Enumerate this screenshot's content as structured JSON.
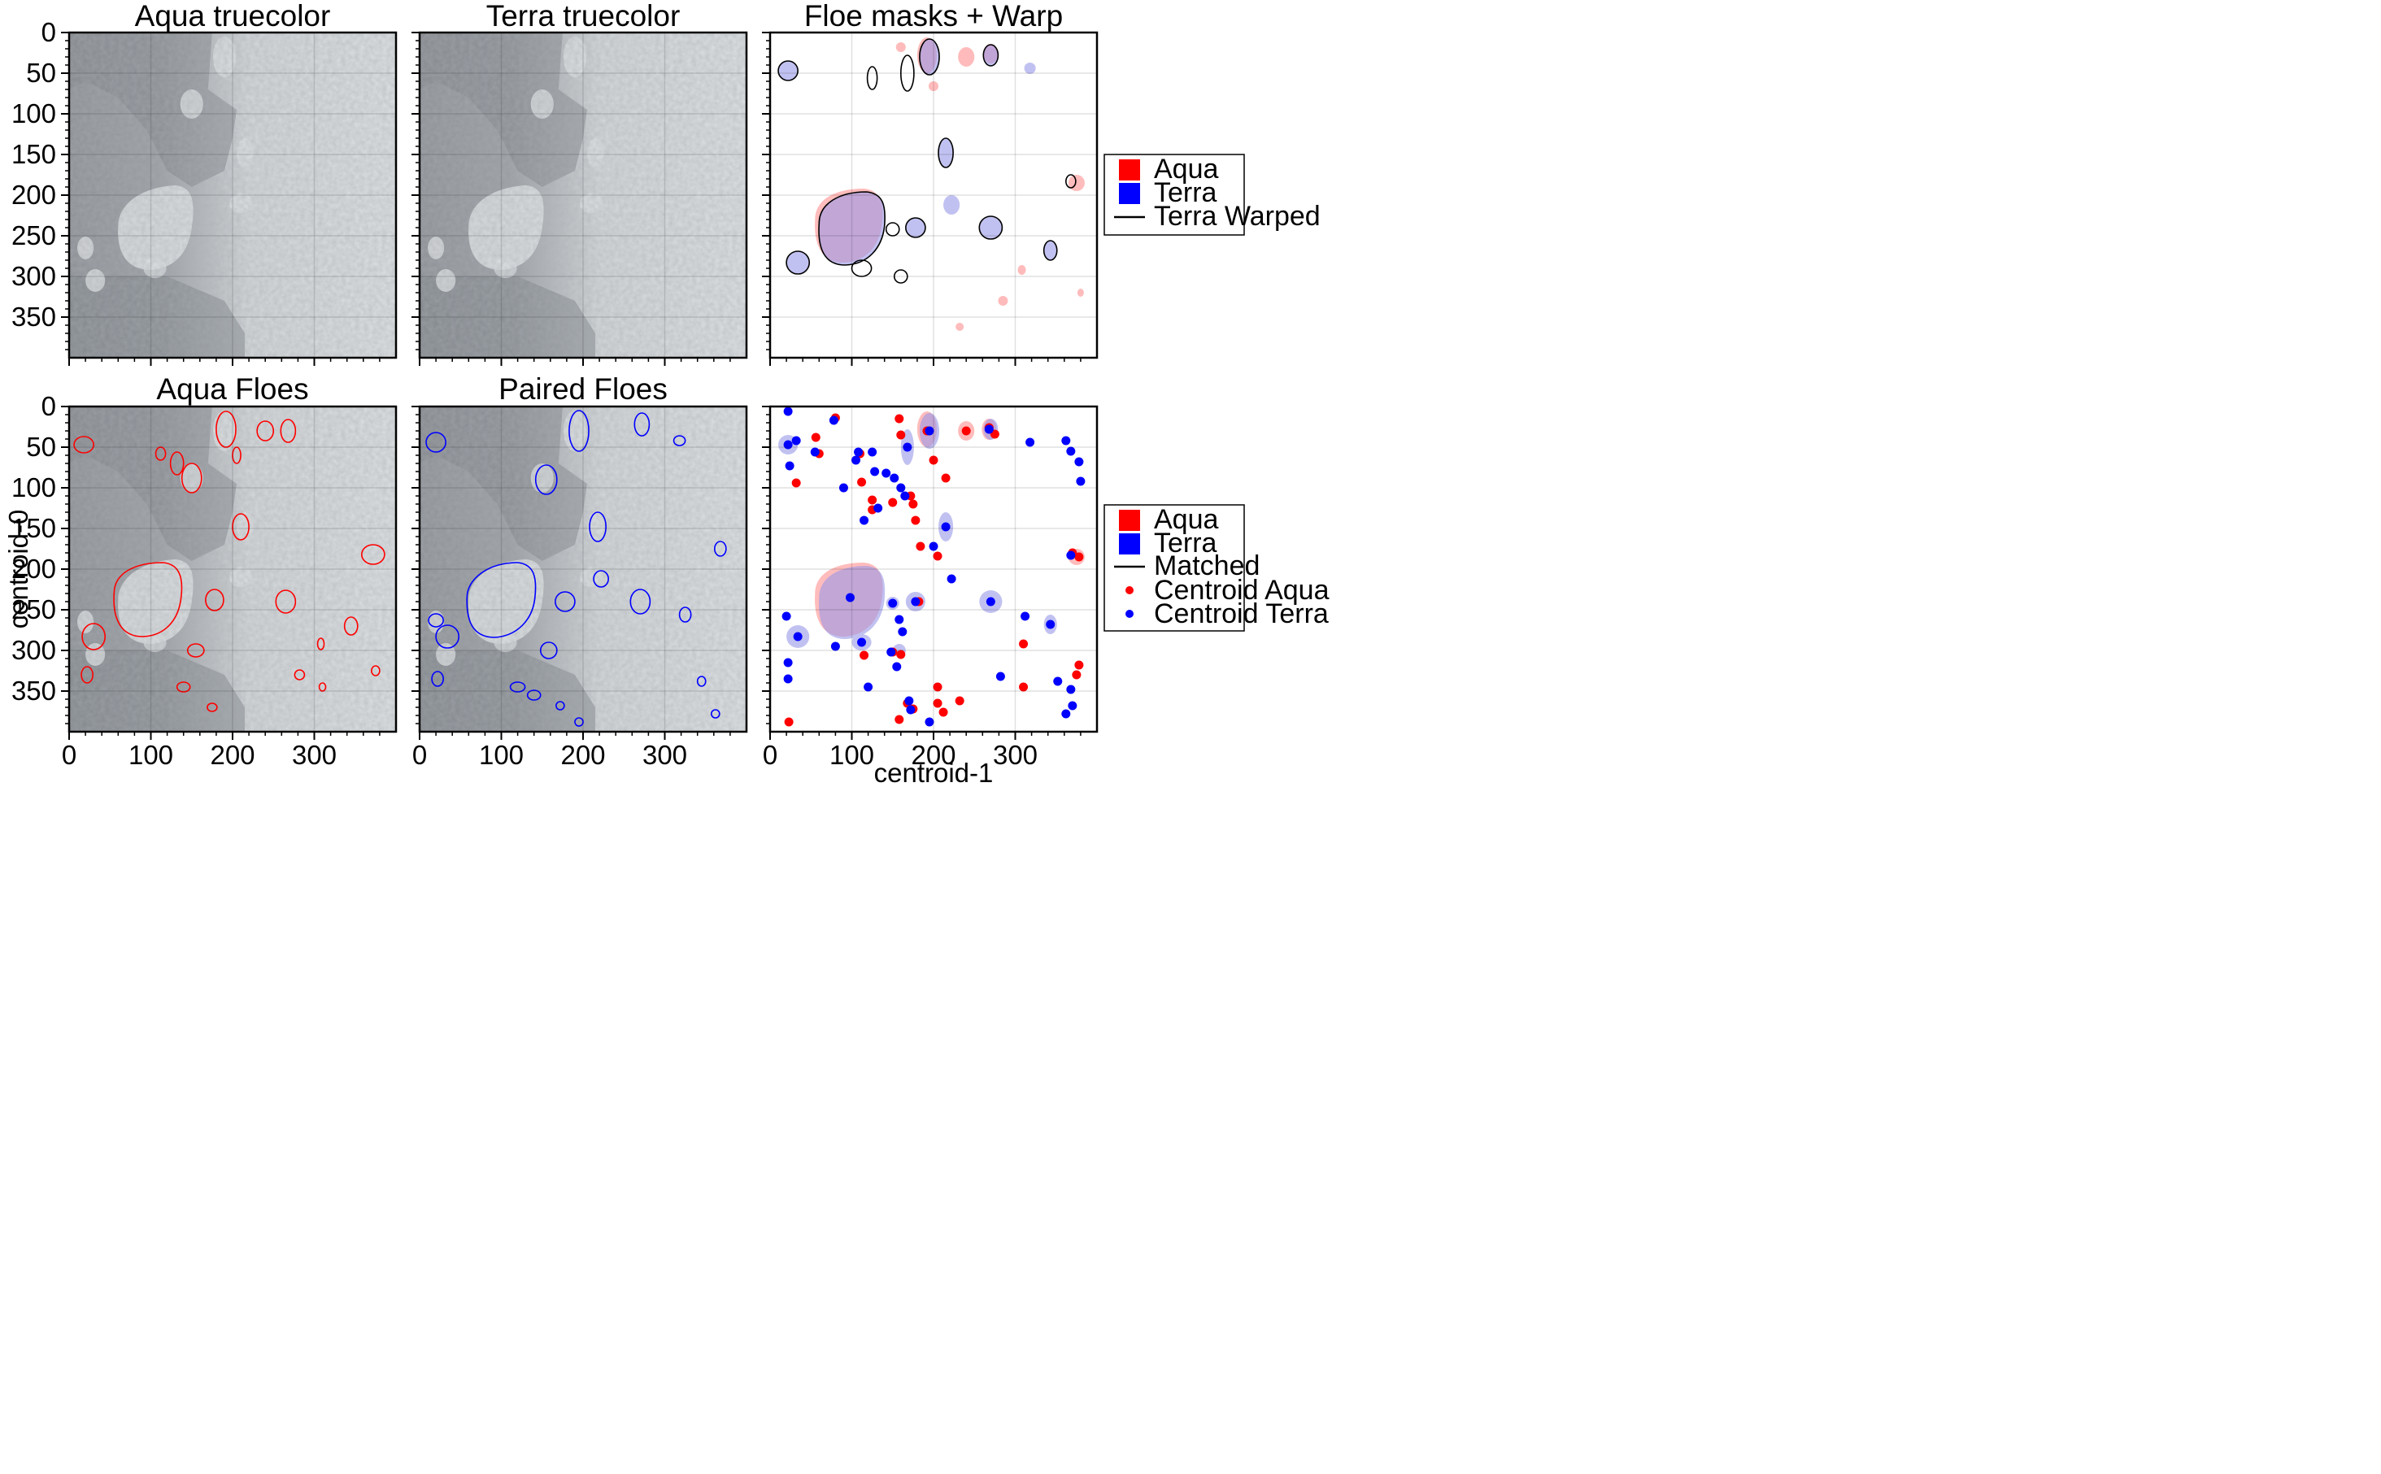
{
  "figure": {
    "type": "image-panel-grid",
    "rows": 2,
    "cols": 3
  },
  "panels": [
    {
      "title": "Aqua truecolor",
      "kind": "image"
    },
    {
      "title": "Terra truecolor",
      "kind": "image"
    },
    {
      "title": "Floe masks + Warp",
      "kind": "mask"
    },
    {
      "title": "Aqua Floes",
      "kind": "contours-aqua"
    },
    {
      "title": "Paired Floes",
      "kind": "contours-terra"
    },
    {
      "title": "",
      "kind": "centroids"
    }
  ],
  "axes": {
    "x_ticks": [
      0,
      100,
      200,
      300
    ],
    "y_ticks": [
      0,
      50,
      100,
      150,
      200,
      250,
      300,
      350
    ],
    "xlim": [
      0,
      400
    ],
    "ylim": [
      0,
      400
    ],
    "xlabel": "centroid-1",
    "ylabel": "centroid-0"
  },
  "legends": {
    "top": [
      {
        "label": "Aqua",
        "type": "patch",
        "color": "#ff0000"
      },
      {
        "label": "Terra",
        "type": "patch",
        "color": "#0000ff"
      },
      {
        "label": "Terra Warped",
        "type": "line",
        "color": "#000000"
      }
    ],
    "bottom": [
      {
        "label": "Aqua",
        "type": "patch",
        "color": "#ff0000"
      },
      {
        "label": "Terra",
        "type": "patch",
        "color": "#0000ff"
      },
      {
        "label": "Matched",
        "type": "line",
        "color": "#000000"
      },
      {
        "label": "Centroid Aqua",
        "type": "dot",
        "color": "#ff0000"
      },
      {
        "label": "Centroid Terra",
        "type": "dot",
        "color": "#0000ff"
      }
    ]
  },
  "chart_data": {
    "type": "scatter",
    "x_field": "centroid-1",
    "y_field": "centroid-0",
    "xlim": [
      0,
      400
    ],
    "ylim": [
      400,
      0
    ],
    "series": [
      {
        "name": "Centroid Aqua",
        "color": "#ff0000",
        "points": [
          [
            23,
            388
          ],
          [
            32,
            94
          ],
          [
            56,
            38
          ],
          [
            60,
            58
          ],
          [
            80,
            14
          ],
          [
            110,
            58
          ],
          [
            112,
            93
          ],
          [
            125,
            115
          ],
          [
            125,
            127
          ],
          [
            150,
            118
          ],
          [
            158,
            15
          ],
          [
            160,
            35
          ],
          [
            172,
            110
          ],
          [
            175,
            120
          ],
          [
            178,
            140
          ],
          [
            184,
            172
          ],
          [
            200,
            66
          ],
          [
            215,
            88
          ],
          [
            240,
            30
          ],
          [
            268,
            26
          ],
          [
            275,
            34
          ],
          [
            192,
            30
          ],
          [
            205,
            184
          ],
          [
            150,
            302
          ],
          [
            160,
            305
          ],
          [
            168,
            365
          ],
          [
            175,
            372
          ],
          [
            205,
            365
          ],
          [
            212,
            376
          ],
          [
            232,
            362
          ],
          [
            310,
            292
          ],
          [
            310,
            345
          ],
          [
            375,
            330
          ],
          [
            378,
            318
          ],
          [
            378,
            185
          ],
          [
            370,
            180
          ],
          [
            158,
            385
          ],
          [
            115,
            306
          ],
          [
            205,
            345
          ],
          [
            182,
            240
          ]
        ]
      },
      {
        "name": "Centroid Terra",
        "color": "#0000ff",
        "points": [
          [
            22,
            6
          ],
          [
            32,
            42
          ],
          [
            55,
            56
          ],
          [
            78,
            17
          ],
          [
            105,
            66
          ],
          [
            108,
            56
          ],
          [
            128,
            80
          ],
          [
            142,
            82
          ],
          [
            152,
            88
          ],
          [
            160,
            100
          ],
          [
            165,
            110
          ],
          [
            132,
            125
          ],
          [
            115,
            140
          ],
          [
            195,
            30
          ],
          [
            268,
            28
          ],
          [
            318,
            44
          ],
          [
            362,
            42
          ],
          [
            368,
            55
          ],
          [
            378,
            68
          ],
          [
            380,
            92
          ],
          [
            22,
            47
          ],
          [
            24,
            73
          ],
          [
            90,
            100
          ],
          [
            125,
            56
          ],
          [
            168,
            50
          ],
          [
            215,
            148
          ],
          [
            200,
            172
          ],
          [
            368,
            183
          ],
          [
            222,
            212
          ],
          [
            178,
            240
          ],
          [
            98,
            235
          ],
          [
            20,
            258
          ],
          [
            34,
            283
          ],
          [
            80,
            295
          ],
          [
            112,
            290
          ],
          [
            150,
            242
          ],
          [
            158,
            262
          ],
          [
            162,
            277
          ],
          [
            148,
            302
          ],
          [
            155,
            320
          ],
          [
            22,
            315
          ],
          [
            22,
            335
          ],
          [
            120,
            345
          ],
          [
            170,
            362
          ],
          [
            172,
            373
          ],
          [
            195,
            388
          ],
          [
            270,
            240
          ],
          [
            282,
            332
          ],
          [
            312,
            258
          ],
          [
            343,
            268
          ],
          [
            352,
            338
          ],
          [
            362,
            378
          ],
          [
            370,
            368
          ],
          [
            368,
            348
          ]
        ]
      }
    ]
  }
}
